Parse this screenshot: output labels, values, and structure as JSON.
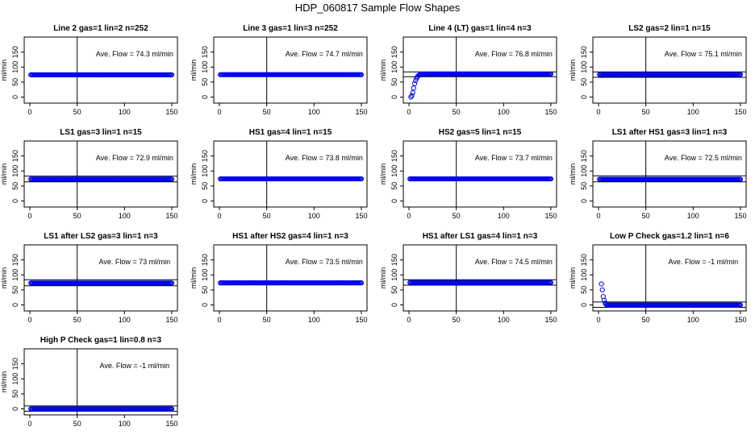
{
  "figure": {
    "title": "HDP_060817  Sample Flow Shapes"
  },
  "style": {
    "point_color": "#0000ee",
    "axis_color": "#000000"
  },
  "chart_data": [
    {
      "type": "scatter",
      "title": "Line 2 gas=1 lin=2 n=252",
      "ylabel": "ml/min",
      "xlim": [
        0,
        150
      ],
      "ylim": [
        -20,
        200
      ],
      "xticks": [
        0,
        50,
        100,
        150
      ],
      "yticks": [
        0,
        50,
        100,
        150
      ],
      "annotation": "Ave. Flow =  74.3  ml/min",
      "vline": 50,
      "hlines": [],
      "pattern": "flat",
      "plateau": 74.3
    },
    {
      "type": "scatter",
      "title": "Line 3 gas=1 lin=3 n=252",
      "ylabel": "ml/min",
      "xlim": [
        0,
        150
      ],
      "ylim": [
        -20,
        200
      ],
      "xticks": [
        0,
        50,
        100,
        150
      ],
      "yticks": [
        0,
        50,
        100,
        150
      ],
      "annotation": "Ave. Flow =  74.7  ml/min",
      "vline": 50,
      "hlines": [],
      "pattern": "flat",
      "plateau": 74.7
    },
    {
      "type": "scatter",
      "title": "Line 4 (LT) gas=1 lin=4 n=3",
      "ylabel": "ml/min",
      "xlim": [
        0,
        150
      ],
      "ylim": [
        -20,
        200
      ],
      "xticks": [
        0,
        50,
        100,
        150
      ],
      "yticks": [
        0,
        50,
        100,
        150
      ],
      "annotation": "Ave. Flow =  76.8  ml/min",
      "vline": 50,
      "hlines": [
        84,
        68
      ],
      "pattern": "rise",
      "plateau": 76.8,
      "startpoints": [
        [
          2,
          0
        ],
        [
          3,
          5
        ],
        [
          4,
          15
        ],
        [
          5,
          30
        ],
        [
          6,
          45
        ],
        [
          7,
          55
        ],
        [
          8,
          63
        ],
        [
          9,
          68
        ],
        [
          10,
          72
        ],
        [
          11,
          74
        ],
        [
          12,
          75
        ]
      ]
    },
    {
      "type": "scatter",
      "title": "LS2 gas=2 lin=1 n=15",
      "ylabel": "ml/min",
      "xlim": [
        0,
        150
      ],
      "ylim": [
        -20,
        200
      ],
      "xticks": [
        0,
        50,
        100,
        150
      ],
      "yticks": [
        0,
        50,
        100,
        150
      ],
      "annotation": "Ave. Flow =  75.1  ml/min",
      "vline": 50,
      "hlines": [
        84,
        66
      ],
      "pattern": "flat",
      "plateau": 75.1
    },
    {
      "type": "scatter",
      "title": "LS1 gas=3 lin=1 n=15",
      "ylabel": "ml/min",
      "xlim": [
        0,
        150
      ],
      "ylim": [
        -20,
        200
      ],
      "xticks": [
        0,
        50,
        100,
        150
      ],
      "yticks": [
        0,
        50,
        100,
        150
      ],
      "annotation": "Ave. Flow =  72.9  ml/min",
      "vline": 50,
      "hlines": [
        83,
        64
      ],
      "pattern": "flat",
      "plateau": 72.9
    },
    {
      "type": "scatter",
      "title": "HS1 gas=4 lin=1 n=15",
      "ylabel": "ml/min",
      "xlim": [
        0,
        150
      ],
      "ylim": [
        -20,
        200
      ],
      "xticks": [
        0,
        50,
        100,
        150
      ],
      "yticks": [
        0,
        50,
        100,
        150
      ],
      "annotation": "Ave. Flow =  73.8  ml/min",
      "vline": 50,
      "hlines": [],
      "pattern": "flat",
      "plateau": 73.8
    },
    {
      "type": "scatter",
      "title": "HS2 gas=5 lin=1 n=15",
      "ylabel": "ml/min",
      "xlim": [
        0,
        150
      ],
      "ylim": [
        -20,
        200
      ],
      "xticks": [
        0,
        50,
        100,
        150
      ],
      "yticks": [
        0,
        50,
        100,
        150
      ],
      "annotation": "Ave. Flow =  73.7  ml/min",
      "vline": 50,
      "hlines": [],
      "pattern": "flat",
      "plateau": 73.7
    },
    {
      "type": "scatter",
      "title": "LS1 after HS1 gas=3 lin=1 n=3",
      "ylabel": "ml/min",
      "xlim": [
        0,
        150
      ],
      "ylim": [
        -20,
        200
      ],
      "xticks": [
        0,
        50,
        100,
        150
      ],
      "yticks": [
        0,
        50,
        100,
        150
      ],
      "annotation": "Ave. Flow =  72.5  ml/min",
      "vline": 50,
      "hlines": [
        84,
        64
      ],
      "pattern": "flat",
      "plateau": 72.5
    },
    {
      "type": "scatter",
      "title": "LS1 after LS2 gas=3 lin=1 n=3",
      "ylabel": "ml/min",
      "xlim": [
        0,
        150
      ],
      "ylim": [
        -20,
        200
      ],
      "xticks": [
        0,
        50,
        100,
        150
      ],
      "yticks": [
        0,
        50,
        100,
        150
      ],
      "annotation": "Ave. Flow =  73  ml/min",
      "vline": 50,
      "hlines": [
        84,
        64
      ],
      "pattern": "flat",
      "plateau": 73
    },
    {
      "type": "scatter",
      "title": "HS1 after HS2 gas=4 lin=1 n=3",
      "ylabel": "ml/min",
      "xlim": [
        0,
        150
      ],
      "ylim": [
        -20,
        200
      ],
      "xticks": [
        0,
        50,
        100,
        150
      ],
      "yticks": [
        0,
        50,
        100,
        150
      ],
      "annotation": "Ave. Flow =  73.5  ml/min",
      "vline": 50,
      "hlines": [],
      "pattern": "flat",
      "plateau": 73.5
    },
    {
      "type": "scatter",
      "title": "HS1 after LS1 gas=4 lin=1 n=3",
      "ylabel": "ml/min",
      "xlim": [
        0,
        150
      ],
      "ylim": [
        -20,
        200
      ],
      "xticks": [
        0,
        50,
        100,
        150
      ],
      "yticks": [
        0,
        50,
        100,
        150
      ],
      "annotation": "Ave. Flow =  74.5  ml/min",
      "vline": 50,
      "hlines": [
        84,
        66
      ],
      "pattern": "flat",
      "plateau": 74.5
    },
    {
      "type": "scatter",
      "title": "Low P Check gas=1.2 lin=1 n=6",
      "ylabel": "ml/min",
      "xlim": [
        0,
        150
      ],
      "ylim": [
        -20,
        200
      ],
      "xticks": [
        0,
        50,
        100,
        150
      ],
      "yticks": [
        0,
        50,
        100,
        150
      ],
      "annotation": "Ave. Flow =  -1  ml/min",
      "vline": 50,
      "hlines": [
        10,
        -8
      ],
      "pattern": "fall",
      "plateau": 0,
      "startpoints": [
        [
          3,
          70
        ],
        [
          4,
          50
        ],
        [
          5,
          28
        ],
        [
          6,
          15
        ],
        [
          7,
          6
        ],
        [
          8,
          2
        ]
      ]
    },
    {
      "type": "scatter",
      "title": "High P Check gas=1 lin=0.8 n=3",
      "ylabel": "ml/min",
      "xlim": [
        0,
        150
      ],
      "ylim": [
        -20,
        200
      ],
      "xticks": [
        0,
        50,
        100,
        150
      ],
      "yticks": [
        0,
        50,
        100,
        150
      ],
      "annotation": "Ave. Flow =  -1  ml/min",
      "vline": 50,
      "hlines": [
        10,
        -8
      ],
      "pattern": "flat",
      "plateau": 0
    }
  ]
}
